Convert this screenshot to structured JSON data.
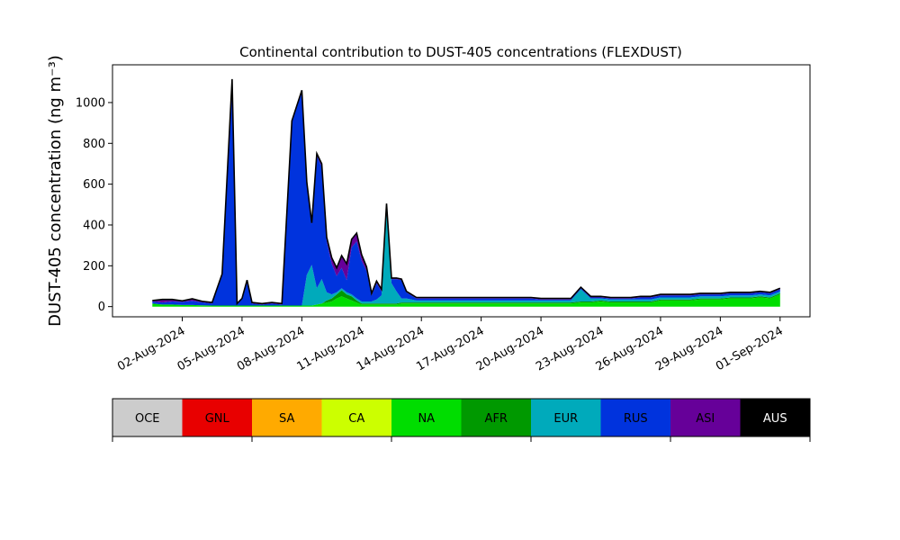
{
  "chart_data": {
    "type": "area",
    "stacked": true,
    "title": "Continental contribution to DUST-405 concentrations (FLEXDUST)",
    "ylabel": "DUST-405 concentration (ng m⁻³)",
    "xlabel": "",
    "ylim": [
      -50,
      1185
    ],
    "xlim": [
      "2024-07-29T12:00",
      "2024-09-02T12:00"
    ],
    "yticks": [
      0,
      200,
      400,
      600,
      800,
      1000
    ],
    "x_tick_labels": [
      "02-Aug-2024",
      "05-Aug-2024",
      "08-Aug-2024",
      "11-Aug-2024",
      "14-Aug-2024",
      "17-Aug-2024",
      "20-Aug-2024",
      "23-Aug-2024",
      "26-Aug-2024",
      "29-Aug-2024",
      "01-Sep-2024"
    ],
    "x_tick_dates": [
      "2024-08-02",
      "2024-08-05",
      "2024-08-08",
      "2024-08-11",
      "2024-08-14",
      "2024-08-17",
      "2024-08-20",
      "2024-08-23",
      "2024-08-26",
      "2024-08-29",
      "2024-09-01"
    ],
    "grid": false,
    "legend": "colorbar-below",
    "x": [
      "2024-07-31T12:00",
      "2024-08-01T00:00",
      "2024-08-01T12:00",
      "2024-08-02T00:00",
      "2024-08-02T12:00",
      "2024-08-03T00:00",
      "2024-08-03T12:00",
      "2024-08-04T00:00",
      "2024-08-04T12:00",
      "2024-08-04T18:00",
      "2024-08-05T00:00",
      "2024-08-05T06:00",
      "2024-08-05T12:00",
      "2024-08-06T00:00",
      "2024-08-06T12:00",
      "2024-08-07T00:00",
      "2024-08-07T12:00",
      "2024-08-08T00:00",
      "2024-08-08T06:00",
      "2024-08-08T12:00",
      "2024-08-08T18:00",
      "2024-08-09T00:00",
      "2024-08-09T06:00",
      "2024-08-09T12:00",
      "2024-08-09T18:00",
      "2024-08-10T00:00",
      "2024-08-10T06:00",
      "2024-08-10T12:00",
      "2024-08-10T18:00",
      "2024-08-11T00:00",
      "2024-08-11T06:00",
      "2024-08-11T12:00",
      "2024-08-11T18:00",
      "2024-08-12T00:00",
      "2024-08-12T06:00",
      "2024-08-12T12:00",
      "2024-08-12T18:00",
      "2024-08-13T00:00",
      "2024-08-13T06:00",
      "2024-08-13T12:00",
      "2024-08-13T18:00",
      "2024-08-14T00:00",
      "2024-08-14T12:00",
      "2024-08-15T00:00",
      "2024-08-15T12:00",
      "2024-08-16T00:00",
      "2024-08-16T12:00",
      "2024-08-17T00:00",
      "2024-08-17T12:00",
      "2024-08-18T00:00",
      "2024-08-18T12:00",
      "2024-08-19T00:00",
      "2024-08-19T12:00",
      "2024-08-20T00:00",
      "2024-08-20T12:00",
      "2024-08-21T00:00",
      "2024-08-21T12:00",
      "2024-08-22T00:00",
      "2024-08-22T12:00",
      "2024-08-23T00:00",
      "2024-08-23T12:00",
      "2024-08-24T00:00",
      "2024-08-24T12:00",
      "2024-08-25T00:00",
      "2024-08-25T12:00",
      "2024-08-26T00:00",
      "2024-08-26T12:00",
      "2024-08-27T00:00",
      "2024-08-27T12:00",
      "2024-08-28T00:00",
      "2024-08-28T12:00",
      "2024-08-29T00:00",
      "2024-08-29T12:00",
      "2024-08-30T00:00",
      "2024-08-30T12:00",
      "2024-08-31T00:00",
      "2024-08-31T12:00",
      "2024-09-01T00:00"
    ],
    "series": [
      {
        "name": "OCE",
        "color": "#cccccc",
        "values": [
          0,
          0,
          0,
          0,
          0,
          0,
          0,
          0,
          0,
          0,
          0,
          0,
          0,
          0,
          0,
          0,
          0,
          0,
          0,
          0,
          0,
          0,
          0,
          0,
          0,
          0,
          0,
          0,
          0,
          0,
          0,
          0,
          0,
          0,
          0,
          0,
          0,
          0,
          0,
          0,
          0,
          0,
          0,
          0,
          0,
          0,
          0,
          0,
          0,
          0,
          0,
          0,
          0,
          0,
          0,
          0,
          0,
          0,
          0,
          0,
          0,
          0,
          0,
          0,
          0,
          0,
          0,
          0,
          0,
          0,
          0,
          0,
          0,
          0,
          0,
          0,
          0,
          0
        ]
      },
      {
        "name": "GNL",
        "color": "#e80000",
        "values": [
          0,
          0,
          0,
          0,
          0,
          0,
          0,
          0,
          0,
          0,
          0,
          0,
          0,
          0,
          0,
          0,
          0,
          0,
          0,
          0,
          0,
          0,
          0,
          0,
          0,
          0,
          0,
          0,
          0,
          0,
          0,
          0,
          0,
          0,
          0,
          0,
          0,
          0,
          0,
          0,
          0,
          0,
          0,
          0,
          0,
          0,
          0,
          0,
          0,
          0,
          0,
          0,
          0,
          0,
          0,
          0,
          0,
          0,
          0,
          0,
          0,
          0,
          0,
          0,
          0,
          0,
          0,
          0,
          0,
          0,
          0,
          0,
          0,
          0,
          0,
          0,
          0,
          0
        ]
      },
      {
        "name": "SA",
        "color": "#ffaa00",
        "values": [
          0,
          0,
          0,
          0,
          0,
          0,
          0,
          0,
          0,
          0,
          0,
          0,
          0,
          0,
          0,
          0,
          0,
          0,
          0,
          0,
          0,
          0,
          0,
          0,
          0,
          0,
          0,
          0,
          0,
          0,
          0,
          0,
          0,
          0,
          0,
          0,
          0,
          0,
          0,
          0,
          0,
          0,
          0,
          0,
          0,
          0,
          0,
          0,
          0,
          0,
          0,
          0,
          0,
          0,
          0,
          0,
          0,
          0,
          0,
          0,
          0,
          0,
          0,
          0,
          0,
          0,
          0,
          0,
          0,
          0,
          0,
          0,
          0,
          0,
          0,
          0,
          0,
          0
        ]
      },
      {
        "name": "CA",
        "color": "#ccff00",
        "values": [
          0,
          0,
          0,
          0,
          0,
          0,
          0,
          0,
          0,
          0,
          0,
          0,
          0,
          0,
          0,
          0,
          0,
          0,
          0,
          0,
          0,
          0,
          0,
          0,
          0,
          0,
          0,
          0,
          0,
          0,
          0,
          0,
          0,
          0,
          0,
          0,
          0,
          0,
          0,
          0,
          0,
          0,
          0,
          0,
          0,
          0,
          0,
          0,
          0,
          0,
          0,
          0,
          0,
          0,
          0,
          0,
          0,
          0,
          0,
          0,
          0,
          0,
          0,
          0,
          0,
          0,
          0,
          0,
          0,
          0,
          0,
          0,
          0,
          0,
          0,
          0,
          0,
          0
        ]
      },
      {
        "name": "NA",
        "color": "#00dd00",
        "values": [
          15,
          10,
          10,
          8,
          8,
          6,
          5,
          5,
          5,
          5,
          5,
          5,
          5,
          5,
          5,
          5,
          5,
          5,
          5,
          5,
          10,
          15,
          20,
          25,
          40,
          50,
          40,
          30,
          20,
          10,
          10,
          10,
          10,
          10,
          10,
          10,
          10,
          15,
          15,
          15,
          15,
          15,
          15,
          15,
          15,
          15,
          15,
          15,
          15,
          15,
          15,
          15,
          15,
          15,
          15,
          15,
          15,
          20,
          20,
          25,
          20,
          20,
          20,
          20,
          20,
          30,
          30,
          30,
          30,
          35,
          35,
          35,
          40,
          40,
          40,
          45,
          40,
          60
        ]
      },
      {
        "name": "AFR",
        "color": "#009900",
        "values": [
          0,
          0,
          0,
          0,
          0,
          0,
          0,
          0,
          0,
          0,
          0,
          0,
          0,
          0,
          0,
          0,
          0,
          0,
          0,
          0,
          0,
          0,
          10,
          15,
          20,
          30,
          20,
          20,
          10,
          5,
          5,
          5,
          5,
          5,
          5,
          5,
          5,
          5,
          5,
          5,
          5,
          5,
          5,
          5,
          5,
          5,
          5,
          5,
          5,
          5,
          5,
          5,
          5,
          5,
          5,
          5,
          5,
          5,
          5,
          5,
          5,
          5,
          5,
          5,
          5,
          5,
          5,
          5,
          5,
          5,
          5,
          5,
          5,
          5,
          5,
          5,
          5,
          5
        ]
      },
      {
        "name": "EUR",
        "color": "#00aabb",
        "values": [
          0,
          0,
          0,
          0,
          0,
          0,
          0,
          0,
          0,
          0,
          0,
          0,
          0,
          0,
          0,
          0,
          0,
          0,
          150,
          200,
          80,
          120,
          40,
          20,
          10,
          10,
          10,
          10,
          10,
          10,
          10,
          10,
          20,
          40,
          480,
          100,
          60,
          20,
          20,
          15,
          10,
          10,
          10,
          10,
          10,
          10,
          10,
          10,
          10,
          10,
          10,
          10,
          10,
          10,
          10,
          10,
          10,
          60,
          15,
          10,
          10,
          10,
          10,
          10,
          10,
          10,
          10,
          10,
          10,
          10,
          10,
          10,
          10,
          10,
          10,
          10,
          10,
          10
        ]
      },
      {
        "name": "RUS",
        "color": "#0033dd",
        "values": [
          10,
          10,
          15,
          15,
          20,
          15,
          10,
          150,
          1100,
          10,
          30,
          120,
          10,
          5,
          10,
          5,
          900,
          1050,
          450,
          200,
          650,
          550,
          250,
          150,
          80,
          100,
          60,
          230,
          280,
          200,
          150,
          30,
          80,
          20,
          5,
          20,
          60,
          90,
          30,
          20,
          10,
          10,
          10,
          10,
          10,
          10,
          10,
          10,
          10,
          10,
          10,
          10,
          10,
          5,
          5,
          5,
          5,
          5,
          5,
          5,
          5,
          5,
          5,
          10,
          10,
          10,
          10,
          10,
          10,
          10,
          10,
          10,
          10,
          10,
          10,
          10,
          10,
          10
        ]
      },
      {
        "name": "ASI",
        "color": "#660099",
        "values": [
          5,
          15,
          10,
          5,
          10,
          5,
          5,
          5,
          10,
          0,
          5,
          5,
          5,
          5,
          5,
          5,
          5,
          5,
          5,
          5,
          10,
          15,
          20,
          30,
          40,
          60,
          80,
          40,
          40,
          30,
          20,
          10,
          10,
          10,
          5,
          5,
          5,
          5,
          5,
          5,
          5,
          5,
          5,
          5,
          5,
          5,
          5,
          5,
          5,
          5,
          5,
          5,
          5,
          5,
          5,
          5,
          5,
          5,
          5,
          5,
          5,
          5,
          5,
          5,
          5,
          5,
          5,
          5,
          5,
          5,
          5,
          5,
          5,
          5,
          5,
          5,
          5,
          5
        ]
      },
      {
        "name": "AUS",
        "color": "#000000",
        "values": [
          0,
          0,
          0,
          0,
          0,
          0,
          0,
          0,
          0,
          0,
          0,
          0,
          0,
          0,
          0,
          0,
          0,
          0,
          0,
          0,
          0,
          0,
          0,
          0,
          0,
          0,
          0,
          0,
          0,
          0,
          0,
          0,
          0,
          0,
          0,
          0,
          0,
          0,
          0,
          0,
          0,
          0,
          0,
          0,
          0,
          0,
          0,
          0,
          0,
          0,
          0,
          0,
          0,
          0,
          0,
          0,
          0,
          0,
          0,
          0,
          0,
          0,
          0,
          0,
          0,
          0,
          0,
          0,
          0,
          0,
          0,
          0,
          0,
          0,
          0,
          0,
          0,
          0
        ]
      }
    ]
  }
}
